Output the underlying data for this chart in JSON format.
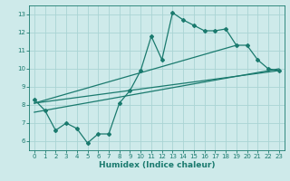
{
  "xlabel": "Humidex (Indice chaleur)",
  "bg_color": "#ceeaea",
  "grid_color": "#aad4d4",
  "line_color": "#1a7a6e",
  "xlim": [
    -0.5,
    23.5
  ],
  "ylim": [
    5.5,
    13.5
  ],
  "xticks": [
    0,
    1,
    2,
    3,
    4,
    5,
    6,
    7,
    8,
    9,
    10,
    11,
    12,
    13,
    14,
    15,
    16,
    17,
    18,
    19,
    20,
    21,
    22,
    23
  ],
  "yticks": [
    6,
    7,
    8,
    9,
    10,
    11,
    12,
    13
  ],
  "main_x": [
    0,
    1,
    2,
    3,
    4,
    5,
    6,
    7,
    8,
    9,
    10,
    11,
    12,
    13,
    14,
    15,
    16,
    17,
    18,
    19,
    20,
    21,
    22,
    23
  ],
  "main_y": [
    8.3,
    7.7,
    6.6,
    7.0,
    6.7,
    5.9,
    6.4,
    6.4,
    8.1,
    8.8,
    9.9,
    11.8,
    10.5,
    13.1,
    12.7,
    12.4,
    12.1,
    12.1,
    12.2,
    11.3,
    11.3,
    10.5,
    10.0,
    9.9
  ],
  "trend1_x": [
    0,
    23
  ],
  "trend1_y": [
    8.1,
    9.9
  ],
  "trend2_x": [
    0,
    23
  ],
  "trend2_y": [
    7.6,
    10.0
  ],
  "trend3_x": [
    0,
    19
  ],
  "trend3_y": [
    8.1,
    11.3
  ]
}
